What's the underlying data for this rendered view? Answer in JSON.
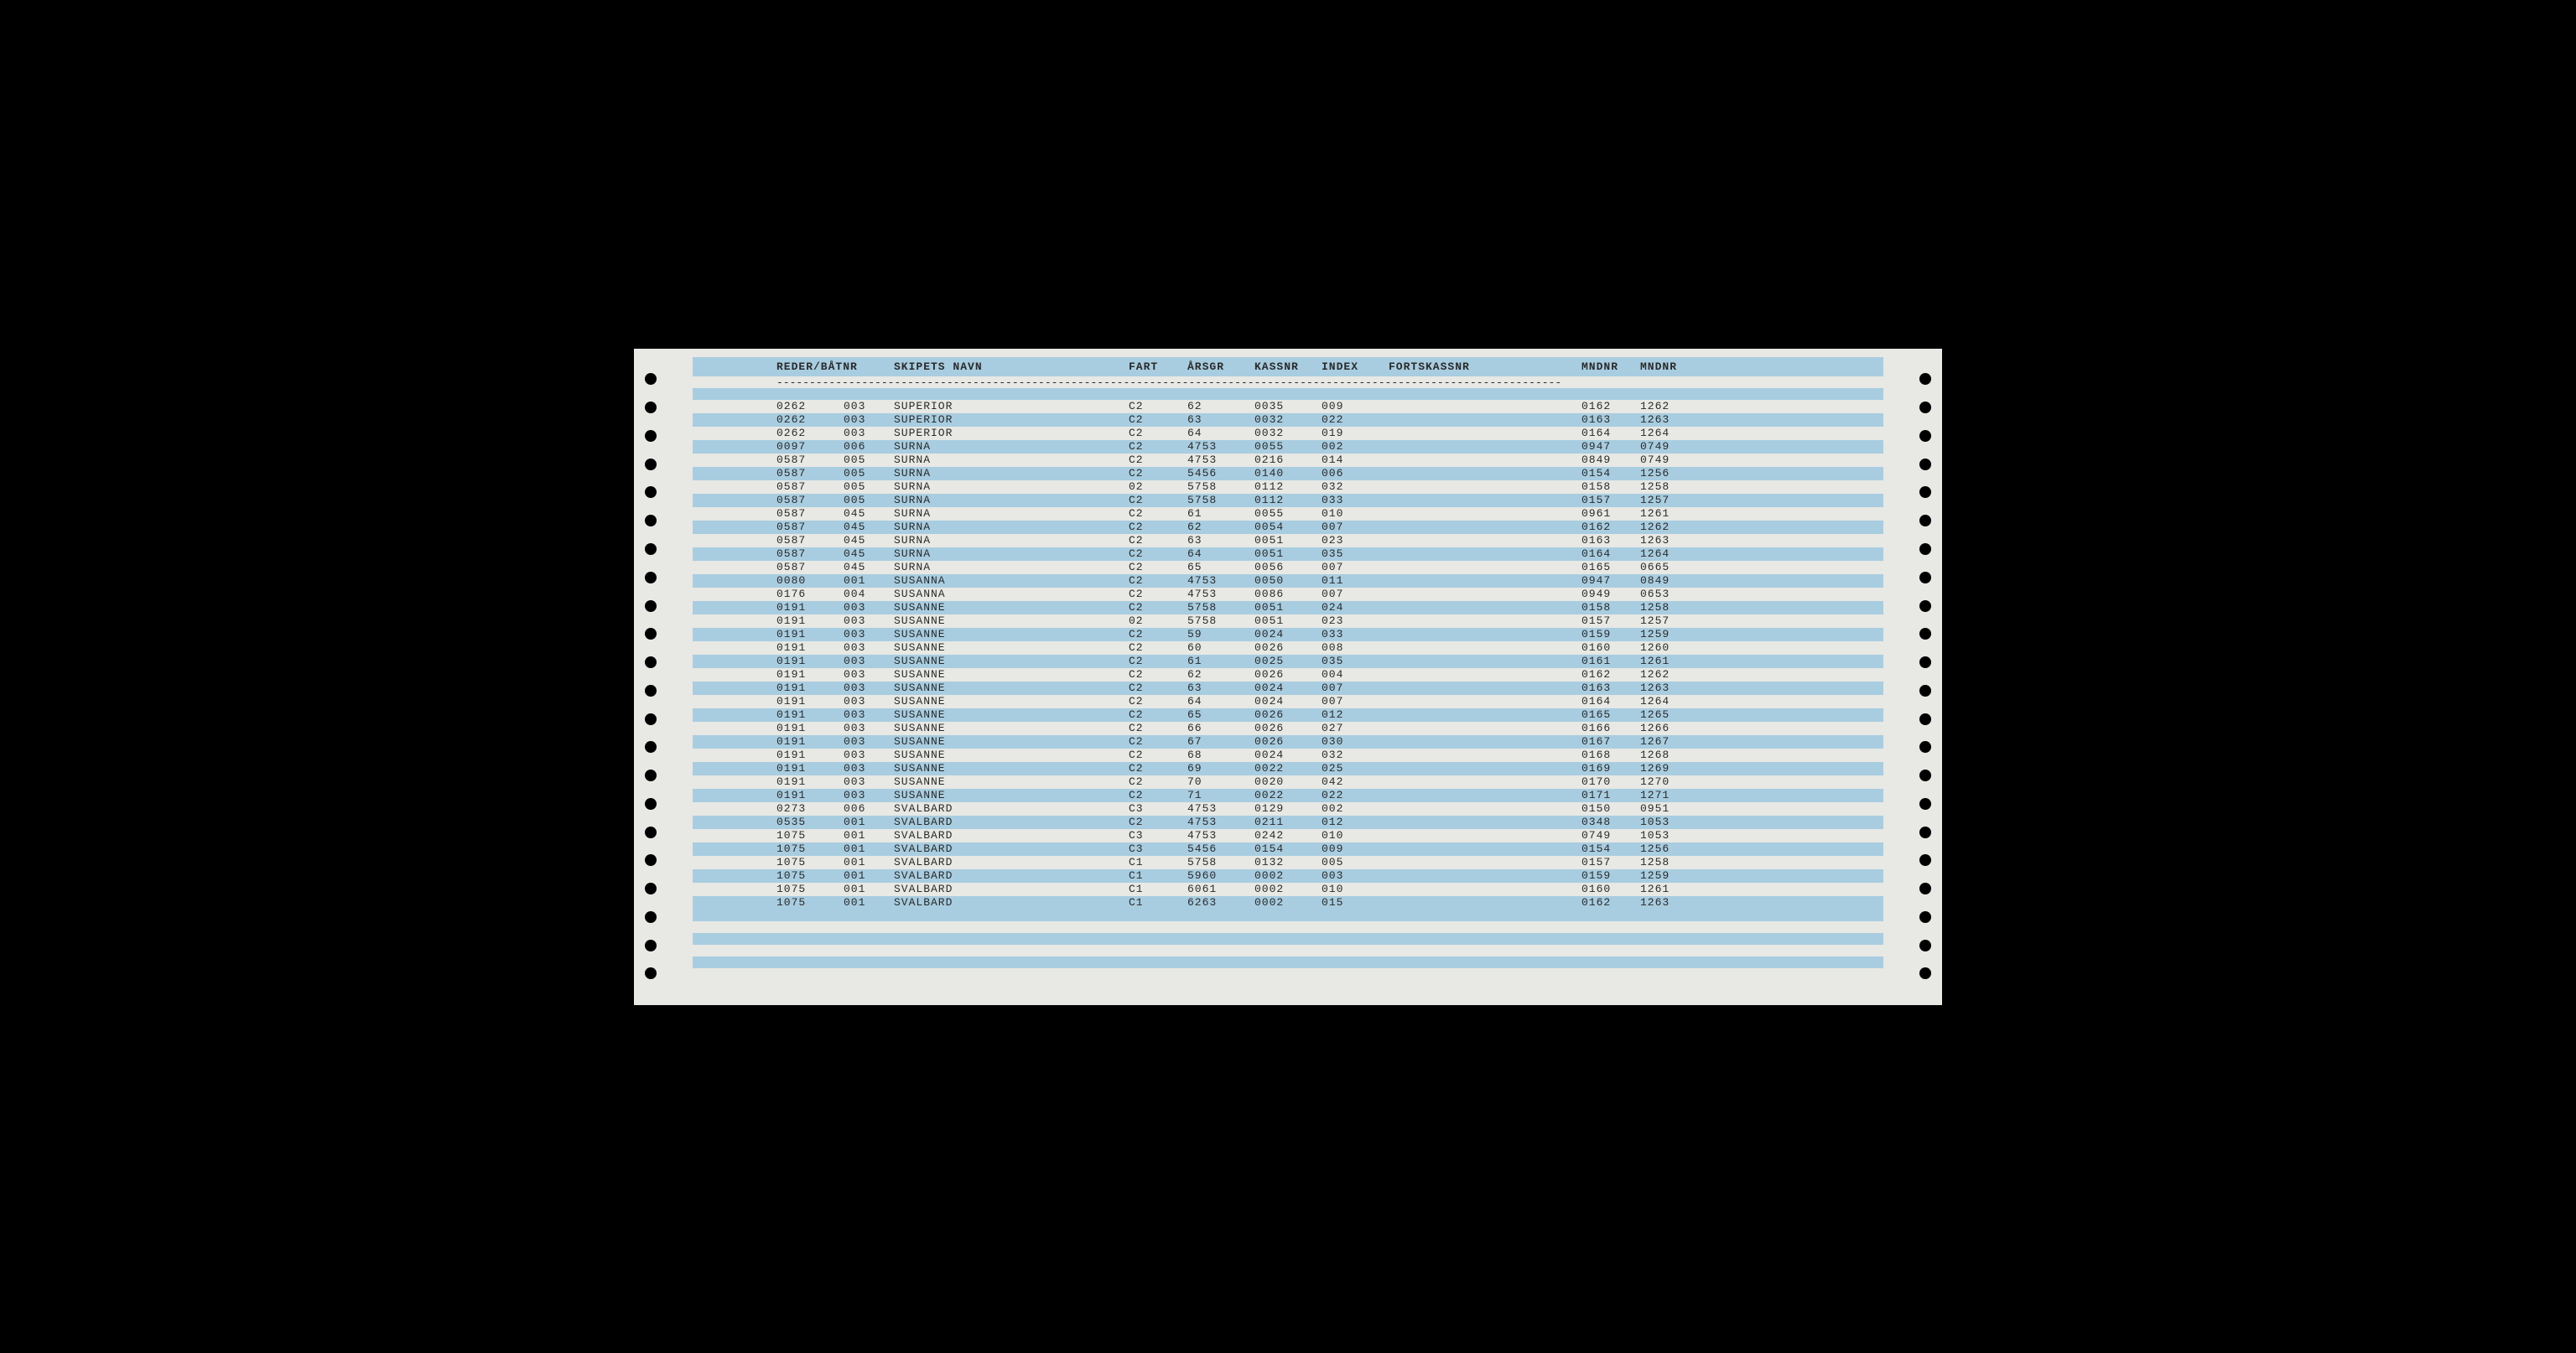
{
  "header": {
    "reder": "REDER/BÅTNR",
    "skip": "SKIPETS NAVN",
    "fart": "FART",
    "arsgr": "ÅRSGR",
    "kassnr": "KASSNR",
    "index": "INDEX",
    "forts": "FORTSKASSNR",
    "mndnr1": "MNDNR",
    "mndnr2": "MNDNR"
  },
  "divider": "------------------------------------------------------------------------------------------------------------------------",
  "rows": [
    {
      "reder": "0262",
      "btnr": "003",
      "skip": "SUPERIOR",
      "fart": "C2",
      "arsgr": "62",
      "kassnr": "0035",
      "index": "009",
      "forts": "",
      "m1": "0162",
      "m2": "1262"
    },
    {
      "reder": "0262",
      "btnr": "003",
      "skip": "SUPERIOR",
      "fart": "C2",
      "arsgr": "63",
      "kassnr": "0032",
      "index": "022",
      "forts": "",
      "m1": "0163",
      "m2": "1263"
    },
    {
      "reder": "0262",
      "btnr": "003",
      "skip": "SUPERIOR",
      "fart": "C2",
      "arsgr": "64",
      "kassnr": "0032",
      "index": "019",
      "forts": "",
      "m1": "0164",
      "m2": "1264"
    },
    {
      "reder": "0097",
      "btnr": "006",
      "skip": "SURNA",
      "fart": "C2",
      "arsgr": "4753",
      "kassnr": "0055",
      "index": "002",
      "forts": "",
      "m1": "0947",
      "m2": "0749"
    },
    {
      "reder": "0587",
      "btnr": "005",
      "skip": "SURNA",
      "fart": "C2",
      "arsgr": "4753",
      "kassnr": "0216",
      "index": "014",
      "forts": "",
      "m1": "0849",
      "m2": "0749"
    },
    {
      "reder": "0587",
      "btnr": "005",
      "skip": "SURNA",
      "fart": "C2",
      "arsgr": "5456",
      "kassnr": "0140",
      "index": "006",
      "forts": "",
      "m1": "0154",
      "m2": "1256"
    },
    {
      "reder": "0587",
      "btnr": "005",
      "skip": "SURNA",
      "fart": "02",
      "arsgr": "5758",
      "kassnr": "0112",
      "index": "032",
      "forts": "",
      "m1": "0158",
      "m2": "1258"
    },
    {
      "reder": "0587",
      "btnr": "005",
      "skip": "SURNA",
      "fart": "C2",
      "arsgr": "5758",
      "kassnr": "0112",
      "index": "033",
      "forts": "",
      "m1": "0157",
      "m2": "1257"
    },
    {
      "reder": "0587",
      "btnr": "045",
      "skip": "SURNA",
      "fart": "C2",
      "arsgr": "61",
      "kassnr": "0055",
      "index": "010",
      "forts": "",
      "m1": "0961",
      "m2": "1261"
    },
    {
      "reder": "0587",
      "btnr": "045",
      "skip": "SURNA",
      "fart": "C2",
      "arsgr": "62",
      "kassnr": "0054",
      "index": "007",
      "forts": "",
      "m1": "0162",
      "m2": "1262"
    },
    {
      "reder": "0587",
      "btnr": "045",
      "skip": "SURNA",
      "fart": "C2",
      "arsgr": "63",
      "kassnr": "0051",
      "index": "023",
      "forts": "",
      "m1": "0163",
      "m2": "1263"
    },
    {
      "reder": "0587",
      "btnr": "045",
      "skip": "SURNA",
      "fart": "C2",
      "arsgr": "64",
      "kassnr": "0051",
      "index": "035",
      "forts": "",
      "m1": "0164",
      "m2": "1264"
    },
    {
      "reder": "0587",
      "btnr": "045",
      "skip": "SURNA",
      "fart": "C2",
      "arsgr": "65",
      "kassnr": "0056",
      "index": "007",
      "forts": "",
      "m1": "0165",
      "m2": "0665"
    },
    {
      "reder": "0080",
      "btnr": "001",
      "skip": "SUSANNA",
      "fart": "C2",
      "arsgr": "4753",
      "kassnr": "0050",
      "index": "011",
      "forts": "",
      "m1": "0947",
      "m2": "0849"
    },
    {
      "reder": "0176",
      "btnr": "004",
      "skip": "SUSANNA",
      "fart": "C2",
      "arsgr": "4753",
      "kassnr": "0086",
      "index": "007",
      "forts": "",
      "m1": "0949",
      "m2": "0653"
    },
    {
      "reder": "0191",
      "btnr": "003",
      "skip": "SUSANNE",
      "fart": "C2",
      "arsgr": "5758",
      "kassnr": "0051",
      "index": "024",
      "forts": "",
      "m1": "0158",
      "m2": "1258"
    },
    {
      "reder": "0191",
      "btnr": "003",
      "skip": "SUSANNE",
      "fart": "02",
      "arsgr": "5758",
      "kassnr": "0051",
      "index": "023",
      "forts": "",
      "m1": "0157",
      "m2": "1257"
    },
    {
      "reder": "0191",
      "btnr": "003",
      "skip": "SUSANNE",
      "fart": "C2",
      "arsgr": "59",
      "kassnr": "0024",
      "index": "033",
      "forts": "",
      "m1": "0159",
      "m2": "1259"
    },
    {
      "reder": "0191",
      "btnr": "003",
      "skip": "SUSANNE",
      "fart": "C2",
      "arsgr": "60",
      "kassnr": "0026",
      "index": "008",
      "forts": "",
      "m1": "0160",
      "m2": "1260"
    },
    {
      "reder": "0191",
      "btnr": "003",
      "skip": "SUSANNE",
      "fart": "C2",
      "arsgr": "61",
      "kassnr": "0025",
      "index": "035",
      "forts": "",
      "m1": "0161",
      "m2": "1261"
    },
    {
      "reder": "0191",
      "btnr": "003",
      "skip": "SUSANNE",
      "fart": "C2",
      "arsgr": "62",
      "kassnr": "0026",
      "index": "004",
      "forts": "",
      "m1": "0162",
      "m2": "1262"
    },
    {
      "reder": "0191",
      "btnr": "003",
      "skip": "SUSANNE",
      "fart": "C2",
      "arsgr": "63",
      "kassnr": "0024",
      "index": "007",
      "forts": "",
      "m1": "0163",
      "m2": "1263"
    },
    {
      "reder": "0191",
      "btnr": "003",
      "skip": "SUSANNE",
      "fart": "C2",
      "arsgr": "64",
      "kassnr": "0024",
      "index": "007",
      "forts": "",
      "m1": "0164",
      "m2": "1264"
    },
    {
      "reder": "0191",
      "btnr": "003",
      "skip": "SUSANNE",
      "fart": "C2",
      "arsgr": "65",
      "kassnr": "0026",
      "index": "012",
      "forts": "",
      "m1": "0165",
      "m2": "1265"
    },
    {
      "reder": "0191",
      "btnr": "003",
      "skip": "SUSANNE",
      "fart": "C2",
      "arsgr": "66",
      "kassnr": "0026",
      "index": "027",
      "forts": "",
      "m1": "0166",
      "m2": "1266"
    },
    {
      "reder": "0191",
      "btnr": "003",
      "skip": "SUSANNE",
      "fart": "C2",
      "arsgr": "67",
      "kassnr": "0026",
      "index": "030",
      "forts": "",
      "m1": "0167",
      "m2": "1267"
    },
    {
      "reder": "0191",
      "btnr": "003",
      "skip": "SUSANNE",
      "fart": "C2",
      "arsgr": "68",
      "kassnr": "0024",
      "index": "032",
      "forts": "",
      "m1": "0168",
      "m2": "1268"
    },
    {
      "reder": "0191",
      "btnr": "003",
      "skip": "SUSANNE",
      "fart": "C2",
      "arsgr": "69",
      "kassnr": "0022",
      "index": "025",
      "forts": "",
      "m1": "0169",
      "m2": "1269"
    },
    {
      "reder": "0191",
      "btnr": "003",
      "skip": "SUSANNE",
      "fart": "C2",
      "arsgr": "70",
      "kassnr": "0020",
      "index": "042",
      "forts": "",
      "m1": "0170",
      "m2": "1270"
    },
    {
      "reder": "0191",
      "btnr": "003",
      "skip": "SUSANNE",
      "fart": "C2",
      "arsgr": "71",
      "kassnr": "0022",
      "index": "022",
      "forts": "",
      "m1": "0171",
      "m2": "1271"
    },
    {
      "reder": "0273",
      "btnr": "006",
      "skip": "SVALBARD",
      "fart": "C3",
      "arsgr": "4753",
      "kassnr": "0129",
      "index": "002",
      "forts": "",
      "m1": "0150",
      "m2": "0951"
    },
    {
      "reder": "0535",
      "btnr": "001",
      "skip": "SVALBARD",
      "fart": "C2",
      "arsgr": "4753",
      "kassnr": "0211",
      "index": "012",
      "forts": "",
      "m1": "0348",
      "m2": "1053"
    },
    {
      "reder": "1075",
      "btnr": "001",
      "skip": "SVALBARD",
      "fart": "C3",
      "arsgr": "4753",
      "kassnr": "0242",
      "index": "010",
      "forts": "",
      "m1": "0749",
      "m2": "1053"
    },
    {
      "reder": "1075",
      "btnr": "001",
      "skip": "SVALBARD",
      "fart": "C3",
      "arsgr": "5456",
      "kassnr": "0154",
      "index": "009",
      "forts": "",
      "m1": "0154",
      "m2": "1256"
    },
    {
      "reder": "1075",
      "btnr": "001",
      "skip": "SVALBARD",
      "fart": "C1",
      "arsgr": "5758",
      "kassnr": "0132",
      "index": "005",
      "forts": "",
      "m1": "0157",
      "m2": "1258"
    },
    {
      "reder": "1075",
      "btnr": "001",
      "skip": "SVALBARD",
      "fart": "C1",
      "arsgr": "5960",
      "kassnr": "0002",
      "index": "003",
      "forts": "",
      "m1": "0159",
      "m2": "1259"
    },
    {
      "reder": "1075",
      "btnr": "001",
      "skip": "SVALBARD",
      "fart": "C1",
      "arsgr": "6061",
      "kassnr": "0002",
      "index": "010",
      "forts": "",
      "m1": "0160",
      "m2": "1261"
    },
    {
      "reder": "1075",
      "btnr": "001",
      "skip": "SVALBARD",
      "fart": "C1",
      "arsgr": "6263",
      "kassnr": "0002",
      "index": "015",
      "forts": "",
      "m1": "0162",
      "m2": "1263"
    }
  ],
  "colors": {
    "stripe_blue": "#a8cde0",
    "paper": "#e8e8e4",
    "text": "#2a2a2a",
    "background": "#000000"
  }
}
